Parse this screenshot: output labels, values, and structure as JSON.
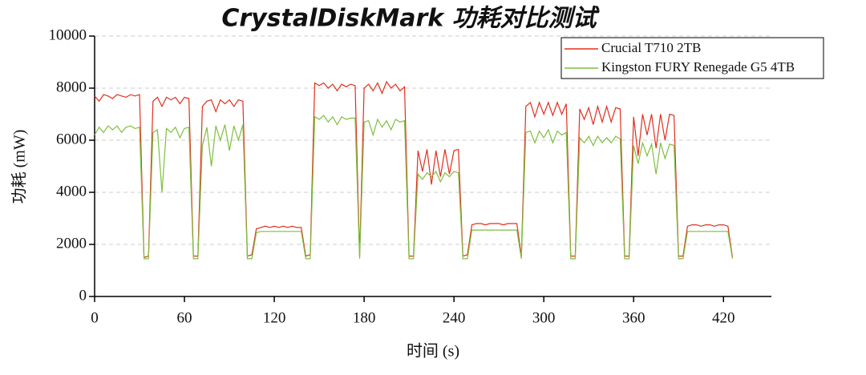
{
  "chart_data": {
    "type": "line",
    "title": "CrystalDiskMark 功耗对比测试",
    "xlabel": "时间 (s)",
    "ylabel": "功耗 (mW)",
    "xlim": [
      0,
      452
    ],
    "ylim": [
      0,
      10000
    ],
    "xticks": [
      0,
      60,
      120,
      180,
      240,
      300,
      360,
      420
    ],
    "yticks": [
      0,
      2000,
      4000,
      6000,
      8000,
      10000
    ],
    "grid": true,
    "legend": "upper right",
    "x": [
      0,
      3,
      6,
      9,
      12,
      15,
      18,
      21,
      24,
      27,
      30,
      33,
      36,
      39,
      42,
      45,
      48,
      51,
      54,
      57,
      60,
      63,
      66,
      69,
      72,
      75,
      78,
      81,
      84,
      87,
      90,
      93,
      96,
      99,
      102,
      105,
      108,
      111,
      114,
      117,
      120,
      123,
      126,
      129,
      132,
      135,
      138,
      141,
      144,
      147,
      150,
      153,
      156,
      159,
      162,
      165,
      168,
      171,
      174,
      177,
      180,
      183,
      186,
      189,
      192,
      195,
      198,
      201,
      204,
      207,
      210,
      213,
      216,
      219,
      222,
      225,
      228,
      231,
      234,
      237,
      240,
      243,
      246,
      249,
      252,
      255,
      258,
      261,
      264,
      267,
      270,
      273,
      276,
      279,
      282,
      285,
      288,
      291,
      294,
      297,
      300,
      303,
      306,
      309,
      312,
      315,
      318,
      321,
      324,
      327,
      330,
      333,
      336,
      339,
      342,
      345,
      348,
      351,
      354,
      357,
      360,
      363,
      366,
      369,
      372,
      375,
      378,
      381,
      384,
      387,
      390,
      393,
      396,
      399,
      402,
      405,
      408,
      411,
      414,
      417,
      420,
      423,
      426
    ],
    "series": [
      {
        "name": "Crucial T710 2TB",
        "color": "#e0301e",
        "values": [
          7700,
          7500,
          7750,
          7700,
          7600,
          7750,
          7700,
          7650,
          7750,
          7700,
          7750,
          1500,
          1550,
          7500,
          7650,
          7300,
          7650,
          7550,
          7650,
          7400,
          7650,
          7600,
          1550,
          1550,
          7300,
          7500,
          7550,
          7100,
          7550,
          7400,
          7550,
          7300,
          7550,
          7500,
          1550,
          1600,
          2600,
          2650,
          2700,
          2650,
          2700,
          2650,
          2700,
          2650,
          2700,
          2650,
          2650,
          1550,
          1600,
          8200,
          8100,
          8200,
          8000,
          8150,
          7900,
          8150,
          8050,
          8150,
          8100,
          1550,
          8000,
          8150,
          7900,
          8200,
          7800,
          8250,
          8000,
          8150,
          7900,
          8050,
          1550,
          1550,
          5600,
          4800,
          5650,
          4300,
          5600,
          4600,
          5650,
          4700,
          5600,
          5650,
          1550,
          1600,
          2750,
          2800,
          2800,
          2750,
          2800,
          2800,
          2800,
          2750,
          2800,
          2800,
          2800,
          1550,
          7300,
          7450,
          6900,
          7450,
          7000,
          7450,
          6950,
          7450,
          7000,
          7400,
          1550,
          1550,
          7200,
          6800,
          7250,
          6600,
          7300,
          6700,
          7300,
          6700,
          7250,
          7200,
          1550,
          1550,
          6900,
          5400,
          7000,
          6200,
          7000,
          5700,
          7000,
          6000,
          7000,
          6950,
          1550,
          1550,
          2700,
          2750,
          2750,
          2700,
          2750,
          2750,
          2700,
          2750,
          2750,
          2700,
          1500
        ]
      },
      {
        "name": "Kingston FURY Renegade G5 4TB",
        "color": "#7fbf3f",
        "values": [
          6200,
          6500,
          6300,
          6550,
          6400,
          6550,
          6300,
          6500,
          6550,
          6450,
          6500,
          1450,
          1450,
          6300,
          6400,
          4000,
          6450,
          6300,
          6500,
          6100,
          6450,
          6500,
          1450,
          1450,
          5800,
          6500,
          5000,
          6550,
          6000,
          6600,
          5600,
          6550,
          6000,
          6600,
          1450,
          1450,
          2450,
          2500,
          2500,
          2500,
          2500,
          2500,
          2500,
          2500,
          2500,
          2500,
          2500,
          1450,
          1450,
          6900,
          6800,
          6950,
          6700,
          6900,
          6600,
          6900,
          6800,
          6850,
          6850,
          1450,
          6700,
          6750,
          6200,
          6800,
          6500,
          6750,
          6400,
          6800,
          6700,
          6750,
          1450,
          1450,
          4700,
          4500,
          4750,
          4600,
          4800,
          4400,
          4750,
          4600,
          4800,
          4750,
          1450,
          1450,
          2550,
          2550,
          2550,
          2550,
          2550,
          2550,
          2550,
          2550,
          2550,
          2550,
          2550,
          1450,
          6300,
          6350,
          5900,
          6350,
          6100,
          6400,
          5900,
          6350,
          6200,
          6300,
          1450,
          1450,
          6100,
          5900,
          6150,
          5800,
          6150,
          5900,
          6100,
          5900,
          6150,
          6050,
          1450,
          1450,
          5800,
          5100,
          5900,
          5400,
          5850,
          4700,
          5900,
          5300,
          5850,
          5800,
          1450,
          1450,
          2500,
          2500,
          2500,
          2500,
          2500,
          2500,
          2500,
          2500,
          2500,
          2500,
          1450
        ]
      }
    ]
  }
}
